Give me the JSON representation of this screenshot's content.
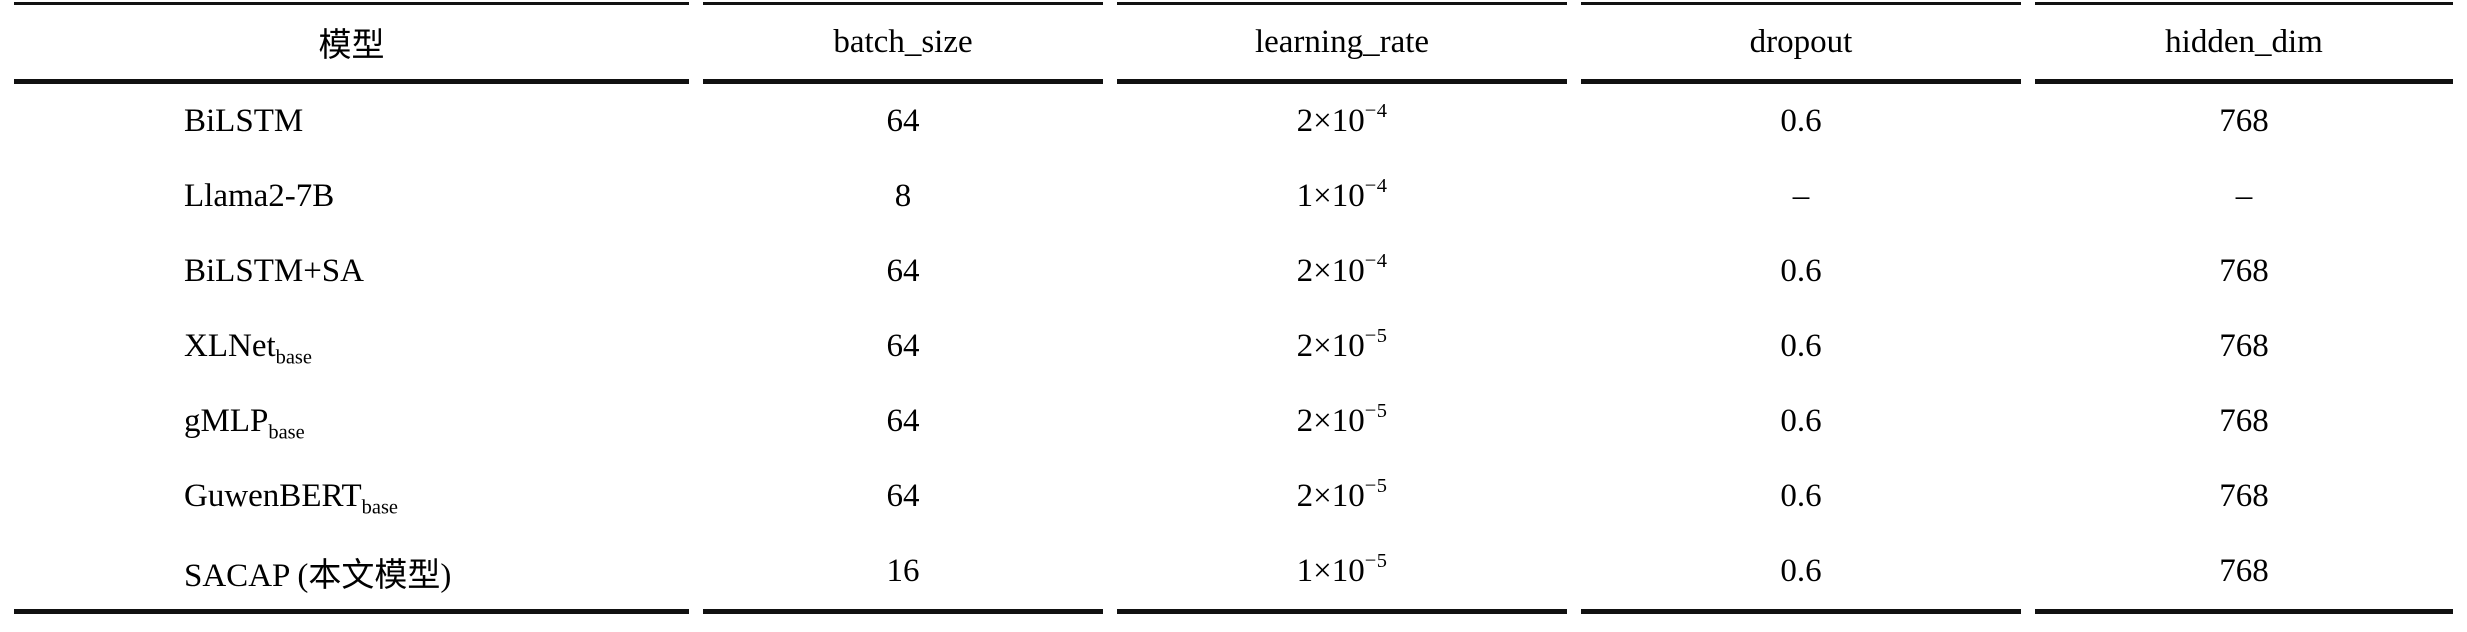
{
  "table": {
    "columns": [
      {
        "label": "模型"
      },
      {
        "label": "batch_size"
      },
      {
        "label": "learning_rate"
      },
      {
        "label": "dropout"
      },
      {
        "label": "hidden_dim"
      }
    ],
    "rows": [
      {
        "model_main": "BiLSTM",
        "model_sub": "",
        "batch_size": "64",
        "lr_base": "2×10",
        "lr_exp": "−4",
        "dropout": "0.6",
        "hidden_dim": "768"
      },
      {
        "model_main": "Llama2-7B",
        "model_sub": "",
        "batch_size": "8",
        "lr_base": "1×10",
        "lr_exp": "−4",
        "dropout": "–",
        "hidden_dim": "–"
      },
      {
        "model_main": "BiLSTM+SA",
        "model_sub": "",
        "batch_size": "64",
        "lr_base": "2×10",
        "lr_exp": "−4",
        "dropout": "0.6",
        "hidden_dim": "768"
      },
      {
        "model_main": "XLNet",
        "model_sub": "base",
        "batch_size": "64",
        "lr_base": "2×10",
        "lr_exp": "−5",
        "dropout": "0.6",
        "hidden_dim": "768"
      },
      {
        "model_main": "gMLP",
        "model_sub": "base",
        "batch_size": "64",
        "lr_base": "2×10",
        "lr_exp": "−5",
        "dropout": "0.6",
        "hidden_dim": "768"
      },
      {
        "model_main": "GuwenBERT",
        "model_sub": "base",
        "batch_size": "64",
        "lr_base": "2×10",
        "lr_exp": "−5",
        "dropout": "0.6",
        "hidden_dim": "768"
      },
      {
        "model_main": "SACAP (本文模型)",
        "model_sub": "",
        "batch_size": "16",
        "lr_base": "1×10",
        "lr_exp": "−5",
        "dropout": "0.6",
        "hidden_dim": "768"
      }
    ]
  }
}
